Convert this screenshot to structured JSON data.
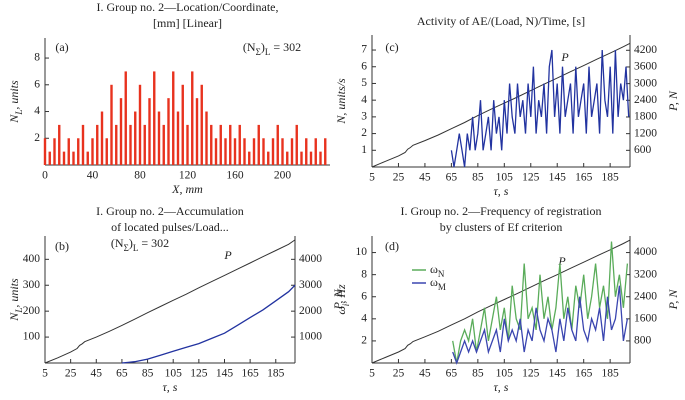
{
  "chart_data": [
    {
      "type": "bar",
      "title": [
        "I. Group no. 2—Location/Coordinate,",
        "[mm] [Linear]"
      ],
      "panel_label": "(a)",
      "annotation": [
        "(N",
        "Σ",
        ")",
        "L",
        " = 302"
      ],
      "xlabel": [
        "X, mm"
      ],
      "ylabel": [
        "N",
        "L",
        ", units"
      ],
      "xlim": [
        0,
        240
      ],
      "xticks": [
        0,
        40,
        80,
        120,
        160,
        200
      ],
      "ylim": [
        0,
        9.5
      ],
      "yticks": [
        2,
        4,
        6,
        8
      ],
      "series": [
        {
          "color": "#e8321e",
          "x": [
            0,
            4,
            8,
            12,
            16,
            20,
            24,
            28,
            32,
            36,
            40,
            44,
            48,
            52,
            56,
            60,
            64,
            68,
            72,
            76,
            80,
            84,
            88,
            92,
            96,
            100,
            104,
            108,
            112,
            116,
            120,
            124,
            128,
            132,
            136,
            140,
            144,
            148,
            152,
            156,
            160,
            164,
            168,
            172,
            176,
            180,
            184,
            188,
            192,
            196,
            200,
            204,
            208,
            212,
            216,
            220,
            224,
            228,
            232,
            236
          ],
          "values": [
            2,
            1,
            2,
            3,
            1,
            2,
            1,
            2,
            3,
            1,
            2,
            3,
            4,
            2,
            6,
            3,
            5,
            7,
            3,
            4,
            6,
            3,
            5,
            7,
            4,
            3,
            5,
            7,
            4,
            6,
            3,
            7,
            5,
            6,
            4,
            3,
            2,
            3,
            2,
            3,
            2,
            3,
            2,
            1,
            2,
            3,
            2,
            1,
            2,
            3,
            2,
            1,
            2,
            3,
            1,
            2,
            1,
            2,
            1,
            2
          ]
        }
      ]
    },
    {
      "type": "line",
      "title": [
        "Activity of AE/(Load, N)/Time, [s]"
      ],
      "panel_label": "(c)",
      "xlabel": [
        "τ, s"
      ],
      "ylabel": [
        "N, units/s"
      ],
      "y2label": [
        "P, N"
      ],
      "xlim": [
        5,
        200
      ],
      "xticks": [
        5,
        25,
        45,
        65,
        85,
        105,
        125,
        145,
        165,
        185
      ],
      "ylim": [
        0,
        7.9
      ],
      "yticks": [
        1,
        2,
        3,
        4,
        5,
        6,
        7
      ],
      "y2lim": [
        0,
        4750
      ],
      "y2ticks": [
        600,
        1200,
        1800,
        2400,
        3000,
        3600,
        4200
      ],
      "series": [
        {
          "name": "P",
          "axis": "y2",
          "color": "#333333",
          "x": [
            5,
            15,
            25,
            30,
            32,
            34,
            36,
            45,
            55,
            65,
            75,
            85,
            95,
            105,
            115,
            125,
            135,
            145,
            155,
            165,
            175,
            185,
            195,
            200
          ],
          "values": [
            0,
            200,
            400,
            520,
            640,
            700,
            780,
            950,
            1150,
            1380,
            1600,
            1850,
            2080,
            2300,
            2520,
            2750,
            2980,
            3200,
            3430,
            3650,
            3880,
            4100,
            4330,
            4450
          ]
        },
        {
          "color": "#2233a0",
          "x": [
            65,
            67,
            69,
            71,
            73,
            75,
            77,
            79,
            81,
            83,
            85,
            87,
            89,
            91,
            93,
            95,
            97,
            99,
            101,
            103,
            105,
            107,
            109,
            111,
            113,
            115,
            117,
            119,
            121,
            123,
            125,
            127,
            129,
            131,
            133,
            135,
            137,
            139,
            141,
            143,
            145,
            147,
            149,
            151,
            153,
            155,
            157,
            159,
            161,
            163,
            165,
            167,
            169,
            171,
            173,
            175,
            177,
            179,
            181,
            183,
            185,
            187,
            189,
            191,
            193,
            195,
            197,
            199
          ],
          "values": [
            1,
            0,
            1,
            2,
            1,
            0,
            2,
            1,
            3,
            1,
            2,
            4,
            1,
            2,
            3,
            1,
            4,
            2,
            3,
            1,
            4,
            2,
            5,
            3,
            2,
            5,
            3,
            4,
            2,
            5,
            3,
            6,
            2,
            4,
            3,
            5,
            2,
            6,
            7,
            3,
            5,
            2,
            6,
            3,
            4,
            5,
            2,
            6,
            3,
            4,
            5,
            2,
            6,
            3,
            4,
            5,
            2,
            7,
            4,
            3,
            6,
            2,
            7,
            3,
            5,
            4,
            6,
            3
          ]
        }
      ]
    },
    {
      "type": "line",
      "title": [
        "I. Group no. 2—Accumulation",
        "of located pulses/Load..."
      ],
      "panel_label": "(b)",
      "annotation": [
        "(N",
        "Σ",
        ")",
        "L",
        " = 302"
      ],
      "xlabel": [
        "τ, s"
      ],
      "ylabel": [
        "N",
        "L",
        ", units"
      ],
      "y2label": [
        "P, N"
      ],
      "xlim": [
        5,
        200
      ],
      "xticks": [
        5,
        25,
        45,
        65,
        85,
        105,
        125,
        145,
        165,
        185
      ],
      "ylim": [
        0,
        490
      ],
      "yticks": [
        100,
        200,
        300,
        400
      ],
      "y2lim": [
        0,
        4900
      ],
      "y2ticks": [
        1000,
        2000,
        3000,
        4000
      ],
      "series": [
        {
          "name": "P",
          "axis": "y2",
          "color": "#333333",
          "x": [
            5,
            15,
            25,
            30,
            32,
            34,
            36,
            45,
            55,
            65,
            75,
            85,
            95,
            105,
            115,
            125,
            135,
            145,
            155,
            165,
            175,
            185,
            195,
            200
          ],
          "values": [
            0,
            200,
            420,
            560,
            680,
            740,
            820,
            1000,
            1220,
            1450,
            1690,
            1940,
            2180,
            2420,
            2650,
            2900,
            3140,
            3380,
            3620,
            3860,
            4100,
            4340,
            4580,
            4750
          ]
        },
        {
          "color": "#2233a0",
          "x": [
            65,
            75,
            85,
            95,
            105,
            115,
            125,
            135,
            145,
            155,
            165,
            175,
            185,
            195,
            200
          ],
          "values": [
            0,
            5,
            15,
            30,
            45,
            60,
            75,
            95,
            115,
            145,
            175,
            205,
            240,
            275,
            300
          ]
        }
      ]
    },
    {
      "type": "line",
      "title": [
        "I. Group no. 2—Frequency of registration",
        "by clusters of Ef criterion"
      ],
      "panel_label": "(d)",
      "legend": "upper left",
      "xlabel": [
        "τ, s"
      ],
      "ylabel": [
        "ω",
        "i",
        ", Hz"
      ],
      "y2label": [
        "P, N"
      ],
      "xlim": [
        5,
        200
      ],
      "xticks": [
        5,
        25,
        45,
        65,
        85,
        105,
        125,
        145,
        165,
        185
      ],
      "ylim": [
        0,
        11.5
      ],
      "yticks": [
        2,
        4,
        6,
        8,
        10
      ],
      "y2lim": [
        0,
        4600
      ],
      "y2ticks": [
        800,
        1600,
        2400,
        3200,
        4000
      ],
      "series": [
        {
          "name": "P",
          "axis": "y2",
          "color": "#333333",
          "x": [
            5,
            15,
            25,
            30,
            32,
            34,
            36,
            45,
            55,
            65,
            75,
            85,
            95,
            105,
            115,
            125,
            135,
            145,
            155,
            165,
            175,
            185,
            195,
            200
          ],
          "values": [
            0,
            200,
            400,
            520,
            640,
            700,
            780,
            950,
            1150,
            1380,
            1600,
            1850,
            2080,
            2300,
            2520,
            2750,
            2980,
            3200,
            3430,
            3650,
            3880,
            4100,
            4330,
            4450
          ]
        },
        {
          "name": [
            "ω",
            "N"
          ],
          "color": "#5aac5a",
          "x": [
            66,
            69,
            72,
            75,
            78,
            81,
            84,
            87,
            90,
            93,
            96,
            99,
            102,
            105,
            108,
            111,
            114,
            117,
            120,
            123,
            126,
            129,
            132,
            135,
            138,
            141,
            144,
            147,
            150,
            153,
            156,
            159,
            162,
            165,
            168,
            171,
            174,
            177,
            180,
            183,
            186,
            189,
            192,
            195,
            198
          ],
          "values": [
            2,
            0,
            2,
            3,
            2,
            4,
            1,
            3,
            5,
            2,
            4,
            6,
            3,
            5,
            2,
            7,
            4,
            3,
            9,
            4,
            5,
            3,
            8,
            4,
            6,
            3,
            5,
            9,
            4,
            6,
            3,
            7,
            5,
            8,
            4,
            6,
            9,
            5,
            7,
            4,
            11,
            6,
            8,
            5,
            9
          ]
        },
        {
          "name": [
            "ω",
            "M"
          ],
          "color": "#3a45b0",
          "x": [
            66,
            69,
            72,
            75,
            78,
            81,
            84,
            87,
            90,
            93,
            96,
            99,
            102,
            105,
            108,
            111,
            114,
            117,
            120,
            123,
            126,
            129,
            132,
            135,
            138,
            141,
            144,
            147,
            150,
            153,
            156,
            159,
            162,
            165,
            168,
            171,
            174,
            177,
            180,
            183,
            186,
            189,
            192,
            195,
            198
          ],
          "values": [
            1,
            0,
            1,
            2,
            1,
            2,
            1,
            2,
            3,
            1,
            2,
            3,
            1,
            4,
            2,
            3,
            2,
            4,
            1,
            3,
            2,
            5,
            3,
            2,
            4,
            3,
            1,
            4,
            2,
            5,
            3,
            2,
            6,
            3,
            2,
            4,
            3,
            5,
            2,
            6,
            3,
            4,
            7,
            2,
            4
          ]
        }
      ]
    }
  ]
}
